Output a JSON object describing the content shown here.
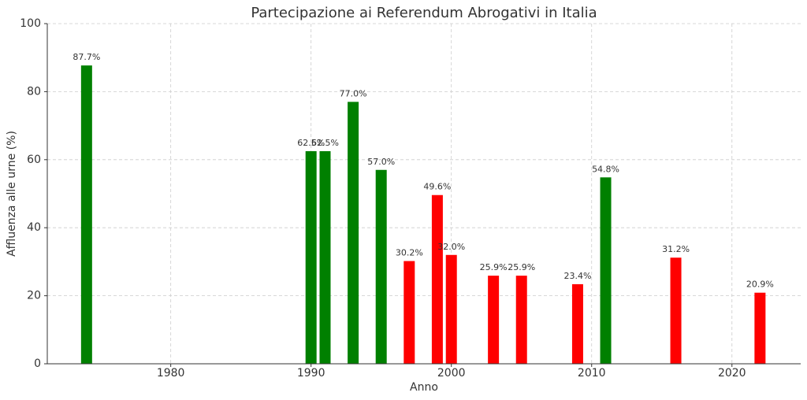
{
  "chart_data": {
    "type": "bar",
    "title": "Partecipazione ai Referendum Abrogativi in Italia",
    "x_label": "Anno",
    "y_label": "Affluenza alle urne (%)",
    "x": [
      1974,
      1990,
      1991,
      1993,
      1995,
      1997,
      1999,
      2000,
      2003,
      2005,
      2009,
      2011,
      2016,
      2022
    ],
    "values": [
      87.7,
      62.5,
      62.5,
      77.0,
      57.0,
      30.2,
      49.6,
      32.0,
      25.9,
      25.9,
      23.4,
      54.8,
      31.2,
      20.9
    ],
    "value_labels": [
      "87.7%",
      "62.5%",
      "62.5%",
      "77.0%",
      "57.0%",
      "30.2%",
      "49.6%",
      "32.0%",
      "25.9%",
      "25.9%",
      "23.4%",
      "54.8%",
      "31.2%",
      "20.9%"
    ],
    "colors": [
      "#008000",
      "#008000",
      "#008000",
      "#008000",
      "#008000",
      "#ff0000",
      "#ff0000",
      "#ff0000",
      "#ff0000",
      "#ff0000",
      "#ff0000",
      "#008000",
      "#ff0000",
      "#ff0000"
    ],
    "xlim": [
      1971.2,
      2024.9
    ],
    "xticks": [
      1980,
      1990,
      2000,
      2010,
      2020
    ],
    "ylim": [
      0,
      100
    ],
    "yticks": [
      0,
      20,
      40,
      60,
      80,
      100
    ],
    "grid": true
  }
}
